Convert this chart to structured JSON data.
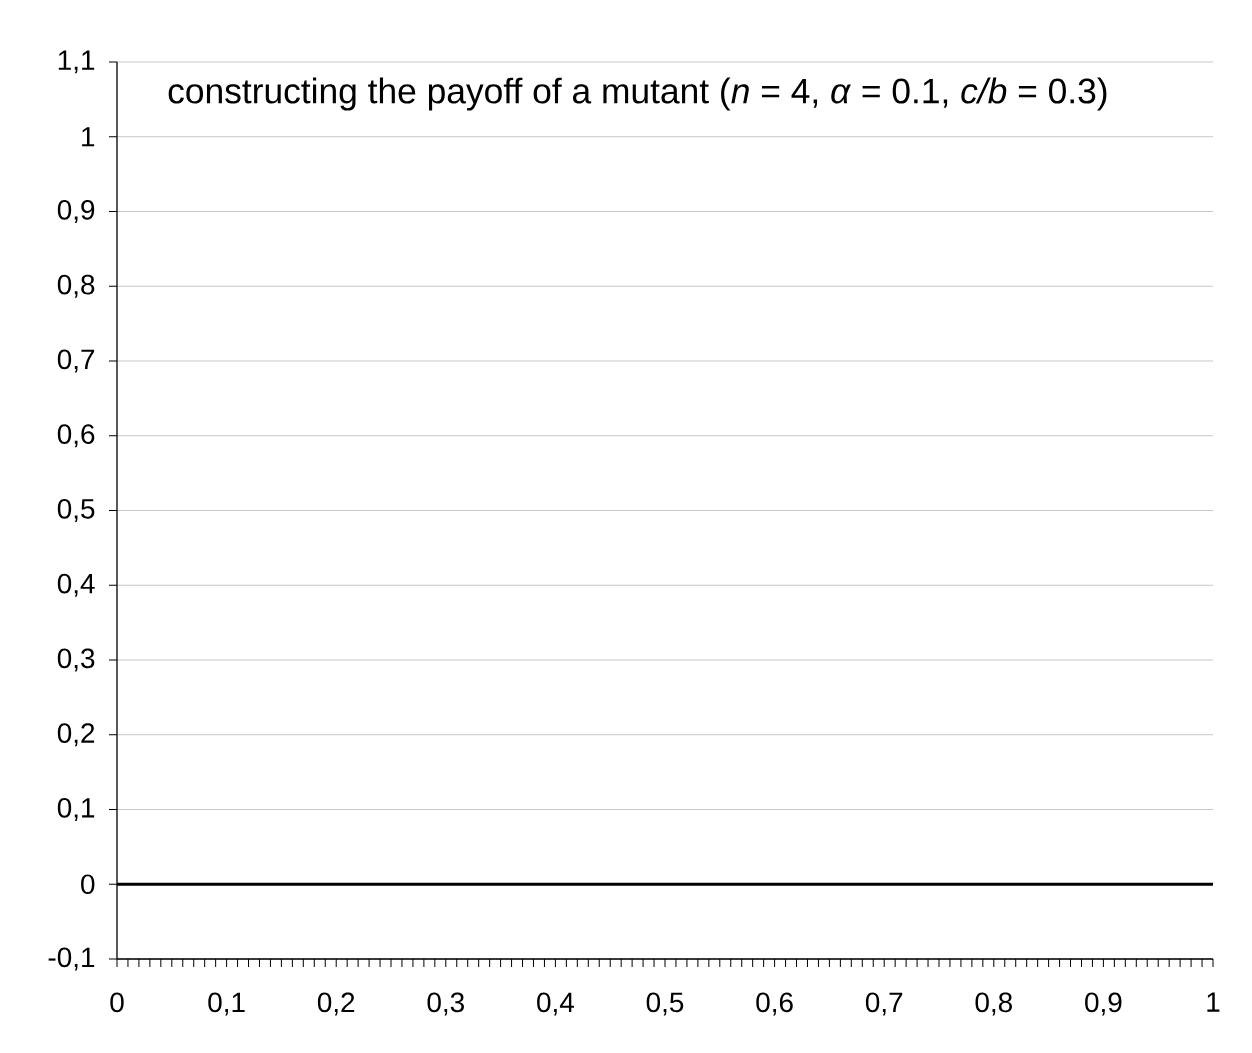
{
  "chart_data": {
    "type": "line",
    "title": "constructing the payoff of a mutant (*n* = 4, *α* = 0.1, *c/b* = 0.3)",
    "x": [
      0,
      1
    ],
    "series": [
      {
        "color": "#000000",
        "values": [
          0,
          0
        ]
      }
    ],
    "xlim": [
      0,
      1
    ],
    "ylim": [
      -0.1,
      1.1
    ],
    "xticks": [
      0,
      {
        "value": 0.01,
        "label": null
      },
      {
        "value": 0.02,
        "label": null
      },
      {
        "value": 0.03,
        "label": null
      },
      {
        "value": 0.04,
        "label": null
      },
      {
        "value": 0.05,
        "label": null
      },
      {
        "value": 0.06,
        "label": null
      },
      {
        "value": 0.07,
        "label": null
      },
      {
        "value": 0.08,
        "label": null
      },
      {
        "value": 0.09,
        "label": null
      },
      {
        "value": 0.1,
        "label": "0,1"
      },
      {
        "value": 0.11,
        "label": null
      },
      {
        "value": 0.12,
        "label": null
      },
      {
        "value": 0.13,
        "label": null
      },
      {
        "value": 0.14,
        "label": null
      },
      {
        "value": 0.15,
        "label": null
      },
      {
        "value": 0.16,
        "label": null
      },
      {
        "value": 0.17,
        "label": null
      },
      {
        "value": 0.18,
        "label": null
      },
      {
        "value": 0.19,
        "label": null
      },
      {
        "value": 0.2,
        "label": "0,2"
      },
      {
        "value": 0.21,
        "label": null
      },
      {
        "value": 0.22,
        "label": null
      },
      {
        "value": 0.23,
        "label": null
      },
      {
        "value": 0.24,
        "label": null
      },
      {
        "value": 0.25,
        "label": null
      },
      {
        "value": 0.26,
        "label": null
      },
      {
        "value": 0.27,
        "label": null
      },
      {
        "value": 0.28,
        "label": null
      },
      {
        "value": 0.29,
        "label": null
      },
      {
        "value": 0.3,
        "label": "0,3"
      },
      {
        "value": 0.31,
        "label": null
      },
      {
        "value": 0.32,
        "label": null
      },
      {
        "value": 0.33,
        "label": null
      },
      {
        "value": 0.34,
        "label": null
      },
      {
        "value": 0.35,
        "label": null
      },
      {
        "value": 0.36,
        "label": null
      },
      {
        "value": 0.37,
        "label": null
      },
      {
        "value": 0.38,
        "label": null
      },
      {
        "value": 0.39,
        "label": null
      },
      {
        "value": 0.4,
        "label": "0,4"
      },
      {
        "value": 0.41,
        "label": null
      },
      {
        "value": 0.42,
        "label": null
      },
      {
        "value": 0.43,
        "label": null
      },
      {
        "value": 0.44,
        "label": null
      },
      {
        "value": 0.45,
        "label": null
      },
      {
        "value": 0.46,
        "label": null
      },
      {
        "value": 0.47,
        "label": null
      },
      {
        "value": 0.48,
        "label": null
      },
      {
        "value": 0.49,
        "label": null
      },
      {
        "value": 0.5,
        "label": "0,5"
      },
      {
        "value": 0.51,
        "label": null
      },
      {
        "value": 0.52,
        "label": null
      },
      {
        "value": 0.53,
        "label": null
      },
      {
        "value": 0.54,
        "label": null
      },
      {
        "value": 0.55,
        "label": null
      },
      {
        "value": 0.56,
        "label": null
      },
      {
        "value": 0.57,
        "label": null
      },
      {
        "value": 0.58,
        "label": null
      },
      {
        "value": 0.59,
        "label": null
      },
      {
        "value": 0.6,
        "label": "0,6"
      },
      {
        "value": 0.61,
        "label": null
      },
      {
        "value": 0.62,
        "label": null
      },
      {
        "value": 0.63,
        "label": null
      },
      {
        "value": 0.64,
        "label": null
      },
      {
        "value": 0.65,
        "label": null
      },
      {
        "value": 0.66,
        "label": null
      },
      {
        "value": 0.67,
        "label": null
      },
      {
        "value": 0.68,
        "label": null
      },
      {
        "value": 0.69,
        "label": null
      },
      {
        "value": 0.7,
        "label": "0,7"
      },
      {
        "value": 0.71,
        "label": null
      },
      {
        "value": 0.72,
        "label": null
      },
      {
        "value": 0.73,
        "label": null
      },
      {
        "value": 0.74,
        "label": null
      },
      {
        "value": 0.75,
        "label": null
      },
      {
        "value": 0.76,
        "label": null
      },
      {
        "value": 0.77,
        "label": null
      },
      {
        "value": 0.78,
        "label": null
      },
      {
        "value": 0.79,
        "label": null
      },
      {
        "value": 0.8,
        "label": "0,8"
      },
      {
        "value": 0.81,
        "label": null
      },
      {
        "value": 0.82,
        "label": null
      },
      {
        "value": 0.83,
        "label": null
      },
      {
        "value": 0.84,
        "label": null
      },
      {
        "value": 0.85,
        "label": null
      },
      {
        "value": 0.86,
        "label": null
      },
      {
        "value": 0.87,
        "label": null
      },
      {
        "value": 0.88,
        "label": null
      },
      {
        "value": 0.89,
        "label": null
      },
      {
        "value": 0.9,
        "label": "0,9"
      },
      {
        "value": 0.91,
        "label": null
      },
      {
        "value": 0.92,
        "label": null
      },
      {
        "value": 0.93,
        "label": null
      },
      {
        "value": 0.94,
        "label": null
      },
      {
        "value": 0.95,
        "label": null
      },
      {
        "value": 0.96,
        "label": null
      },
      {
        "value": 0.97,
        "label": null
      },
      {
        "value": 0.98,
        "label": null
      },
      {
        "value": 0.99,
        "label": null
      },
      1
    ],
    "yticks": [
      {
        "value": -0.1,
        "label": "-0,1"
      },
      0,
      {
        "value": 0.1,
        "label": "0,1"
      },
      {
        "value": 0.2,
        "label": "0,2"
      },
      {
        "value": 0.3,
        "label": "0,3"
      },
      {
        "value": 0.4,
        "label": "0,4"
      },
      {
        "value": 0.5,
        "label": "0,5"
      },
      {
        "value": 0.6,
        "label": "0,6"
      },
      {
        "value": 0.7,
        "label": "0,7"
      },
      {
        "value": 0.8,
        "label": "0,8"
      },
      {
        "value": 0.9,
        "label": "0,9"
      },
      1,
      {
        "value": 1.1,
        "label": "1,1"
      }
    ],
    "grid": "y",
    "marker": "none",
    "line_style": "solid"
  }
}
